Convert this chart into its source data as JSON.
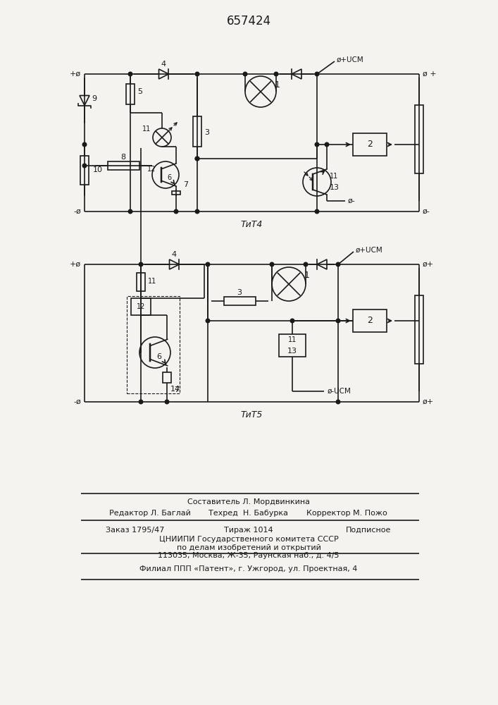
{
  "title": "657424",
  "bg_color": "#f5f3ef",
  "line_color": "#1a1a1a",
  "fig4_caption": "ΤиТ4",
  "fig5_caption": "ΤиТ5",
  "bottom_line1": "Составитель Л. Мордвинкина",
  "bottom_line2a": "Редактор Л. Баглай",
  "bottom_line2b": "Техред  Н. Бабурка",
  "bottom_line2c": "Корректор М. Пожо",
  "bottom_line3a": "Заказ 1795/47",
  "bottom_line3b": "Тираж 1014",
  "bottom_line3c": "Подписное",
  "bottom_line4": "ЦНИИПИ Государственного комитета СССР",
  "bottom_line5": "по делам изобретений и открытий",
  "bottom_line6": "113035, Москва, Ж-35, Раунская наб., д. 4/5",
  "bottom_line7": "Филиал ППП «Патент», г. Ужгород, ул. Проектная, 4"
}
